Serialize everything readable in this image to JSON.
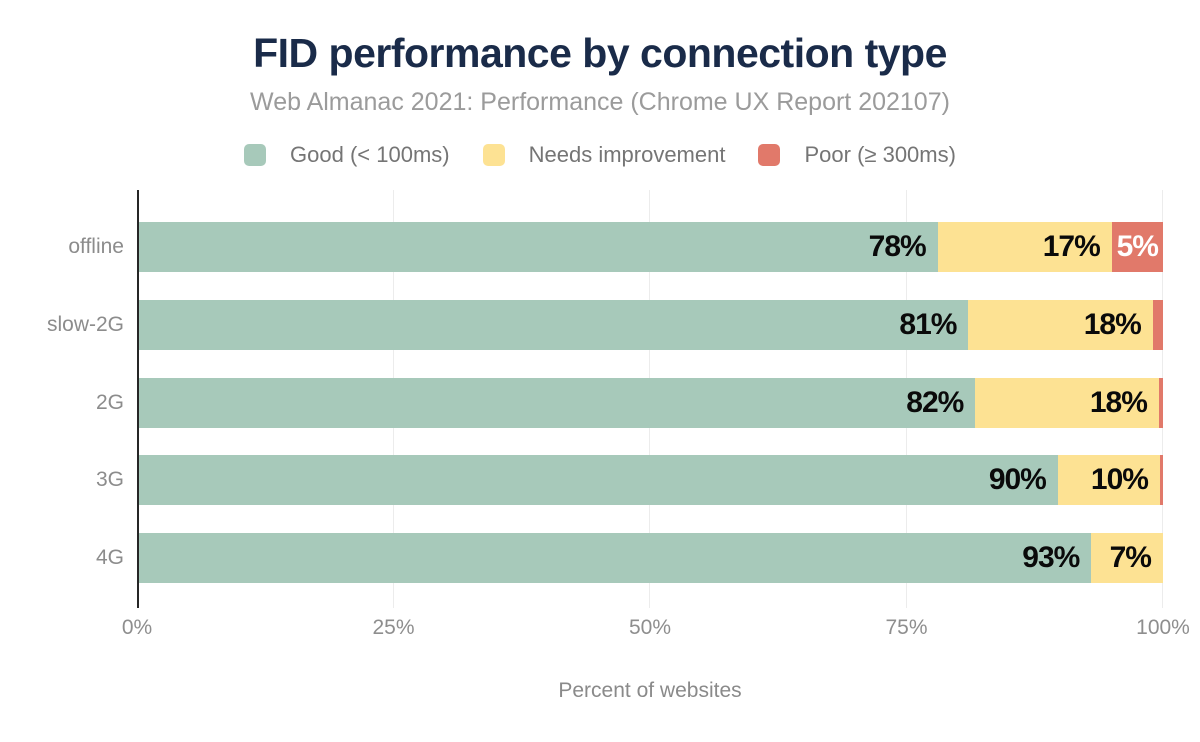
{
  "header": {
    "title": "FID performance by connection type",
    "subtitle": "Web Almanac 2021: Performance (Chrome UX Report 202107)"
  },
  "legend": [
    {
      "label": "Good (< 100ms)",
      "color": "#a7c9ba"
    },
    {
      "label": "Needs improvement",
      "color": "#fde293"
    },
    {
      "label": "Poor (≥ 300ms)",
      "color": "#e1796a"
    }
  ],
  "chart_data": {
    "type": "bar",
    "orientation": "horizontal",
    "stacked": true,
    "title": "FID performance by connection type",
    "subtitle": "Web Almanac 2021: Performance (Chrome UX Report 202107)",
    "categories": [
      "offline",
      "slow-2G",
      "2G",
      "3G",
      "4G"
    ],
    "series": [
      {
        "name": "Good (< 100ms)",
        "color": "#a7c9ba",
        "label_style": "dark",
        "values": [
          78,
          81,
          82,
          90,
          93
        ],
        "labels": [
          "78%",
          "81%",
          "82%",
          "90%",
          "93%"
        ]
      },
      {
        "name": "Needs improvement",
        "color": "#fde293",
        "label_style": "dark",
        "values": [
          17,
          18,
          18,
          10,
          7
        ],
        "labels": [
          "17%",
          "18%",
          "18%",
          "10%",
          "7%"
        ]
      },
      {
        "name": "Poor (≥ 300ms)",
        "color": "#e1796a",
        "label_style": "light",
        "values": [
          5,
          1,
          0.4,
          0.3,
          0
        ],
        "labels": [
          "5%",
          "",
          "",
          "",
          ""
        ]
      }
    ],
    "xlabel": "Percent of websites",
    "ylabel": "",
    "x_ticks": [
      "0%",
      "25%",
      "50%",
      "75%",
      "100%"
    ],
    "x_tick_values": [
      0,
      25,
      50,
      75,
      100
    ],
    "xlim": [
      0,
      100
    ],
    "grid": "vertical-light",
    "legend_position": "top"
  },
  "colors": {
    "title": "#1a2b49",
    "subtitle": "#9b9b9b",
    "axis_text": "#8c8c8c",
    "gridline": "#ececec",
    "axis_line": "#262626",
    "background": "#ffffff"
  }
}
